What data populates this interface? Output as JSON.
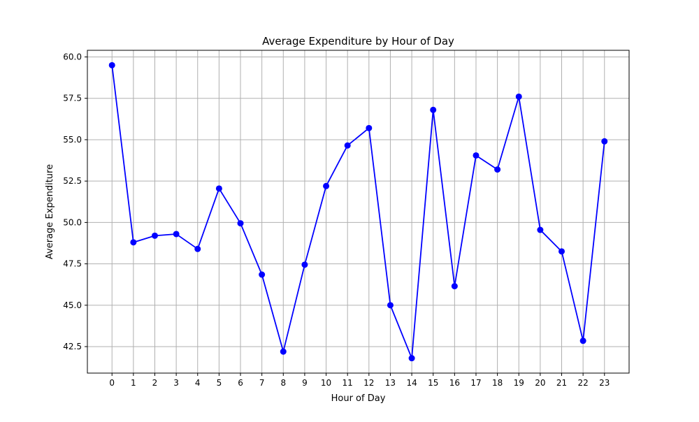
{
  "chart_data": {
    "type": "line",
    "title": "Average Expenditure by Hour of Day",
    "xlabel": "Hour of Day",
    "ylabel": "Average Expenditure",
    "x": [
      0,
      1,
      2,
      3,
      4,
      5,
      6,
      7,
      8,
      9,
      10,
      11,
      12,
      13,
      14,
      15,
      16,
      17,
      18,
      19,
      20,
      21,
      22,
      23
    ],
    "x_tick_labels": [
      "0",
      "1",
      "2",
      "3",
      "4",
      "5",
      "6",
      "7",
      "8",
      "9",
      "10",
      "11",
      "12",
      "13",
      "14",
      "15",
      "16",
      "17",
      "18",
      "19",
      "20",
      "21",
      "22",
      "23"
    ],
    "y_tick_values": [
      42.5,
      45.0,
      47.5,
      50.0,
      52.5,
      55.0,
      57.5,
      60.0
    ],
    "y_tick_labels": [
      "42.5",
      "45.0",
      "47.5",
      "50.0",
      "52.5",
      "55.0",
      "57.5",
      "60.0"
    ],
    "series": [
      {
        "values": [
          59.5,
          48.8,
          49.2,
          49.3,
          48.4,
          52.05,
          49.95,
          46.85,
          42.2,
          47.45,
          52.2,
          54.65,
          55.7,
          45.0,
          41.8,
          56.8,
          46.15,
          54.05,
          53.2,
          57.6,
          49.55,
          48.25,
          42.85,
          54.9
        ],
        "color": "#0000ff",
        "marker": "circle"
      }
    ],
    "xlim": [
      -1.15,
      24.15
    ],
    "ylim": [
      40.9,
      60.4
    ],
    "grid": true
  }
}
